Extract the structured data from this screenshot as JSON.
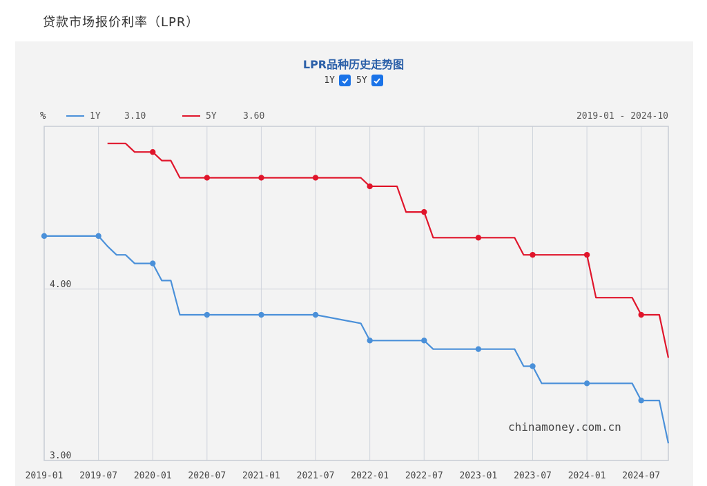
{
  "page": {
    "title": "贷款市场报价利率（LPR）"
  },
  "chart": {
    "title": "LPR品种历史走势图",
    "toggles": [
      {
        "label": "1Y",
        "checked": true
      },
      {
        "label": "5Y",
        "checked": true
      }
    ],
    "unit_label": "%",
    "date_range": "2019-01 - 2024-10",
    "watermark": "chinamoney.com.cn",
    "legend": [
      {
        "name": "1Y",
        "value": "3.10",
        "color": "#4a90d9"
      },
      {
        "name": "5Y",
        "value": "3.60",
        "color": "#e0152b"
      }
    ]
  },
  "chart_data": {
    "type": "line",
    "ylim": [
      3.0,
      4.95
    ],
    "xlim": [
      "2019-01",
      "2024-10"
    ],
    "x_ticks": [
      "2019-01",
      "2019-07",
      "2020-01",
      "2020-07",
      "2021-01",
      "2021-07",
      "2022-01",
      "2022-07",
      "2023-01",
      "2023-07",
      "2024-01",
      "2024-07"
    ],
    "y_ticks": [
      "3.00",
      "4.00"
    ],
    "grid": true,
    "series": [
      {
        "name": "1Y",
        "color": "#4a90d9",
        "points": [
          [
            "2019-01",
            4.31
          ],
          [
            "2019-07",
            4.31
          ],
          [
            "2019-08",
            4.25
          ],
          [
            "2019-09",
            4.2
          ],
          [
            "2019-10",
            4.2
          ],
          [
            "2019-11",
            4.15
          ],
          [
            "2020-01",
            4.15
          ],
          [
            "2020-02",
            4.05
          ],
          [
            "2020-03",
            4.05
          ],
          [
            "2020-04",
            3.85
          ],
          [
            "2020-07",
            3.85
          ],
          [
            "2021-01",
            3.85
          ],
          [
            "2021-07",
            3.85
          ],
          [
            "2021-12",
            3.8
          ],
          [
            "2022-01",
            3.7
          ],
          [
            "2022-07",
            3.7
          ],
          [
            "2022-08",
            3.65
          ],
          [
            "2023-01",
            3.65
          ],
          [
            "2023-05",
            3.65
          ],
          [
            "2023-06",
            3.55
          ],
          [
            "2023-07",
            3.55
          ],
          [
            "2023-08",
            3.45
          ],
          [
            "2024-01",
            3.45
          ],
          [
            "2024-06",
            3.45
          ],
          [
            "2024-07",
            3.35
          ],
          [
            "2024-09",
            3.35
          ],
          [
            "2024-10",
            3.1
          ]
        ],
        "markers": [
          "2019-01",
          "2019-07",
          "2020-01",
          "2020-07",
          "2021-01",
          "2021-07",
          "2022-01",
          "2022-07",
          "2023-01",
          "2023-07",
          "2024-01",
          "2024-07"
        ]
      },
      {
        "name": "5Y",
        "color": "#e0152b",
        "points": [
          [
            "2019-08",
            4.85
          ],
          [
            "2019-10",
            4.85
          ],
          [
            "2019-11",
            4.8
          ],
          [
            "2020-01",
            4.8
          ],
          [
            "2020-02",
            4.75
          ],
          [
            "2020-03",
            4.75
          ],
          [
            "2020-04",
            4.65
          ],
          [
            "2020-07",
            4.65
          ],
          [
            "2021-01",
            4.65
          ],
          [
            "2021-07",
            4.65
          ],
          [
            "2021-12",
            4.65
          ],
          [
            "2022-01",
            4.6
          ],
          [
            "2022-04",
            4.6
          ],
          [
            "2022-05",
            4.45
          ],
          [
            "2022-07",
            4.45
          ],
          [
            "2022-08",
            4.3
          ],
          [
            "2023-01",
            4.3
          ],
          [
            "2023-05",
            4.3
          ],
          [
            "2023-06",
            4.2
          ],
          [
            "2023-07",
            4.2
          ],
          [
            "2024-01",
            4.2
          ],
          [
            "2024-02",
            3.95
          ],
          [
            "2024-06",
            3.95
          ],
          [
            "2024-07",
            3.85
          ],
          [
            "2024-09",
            3.85
          ],
          [
            "2024-10",
            3.6
          ]
        ],
        "markers": [
          "2020-01",
          "2020-07",
          "2021-01",
          "2021-07",
          "2022-01",
          "2022-07",
          "2023-01",
          "2023-07",
          "2024-01",
          "2024-07"
        ]
      }
    ]
  }
}
